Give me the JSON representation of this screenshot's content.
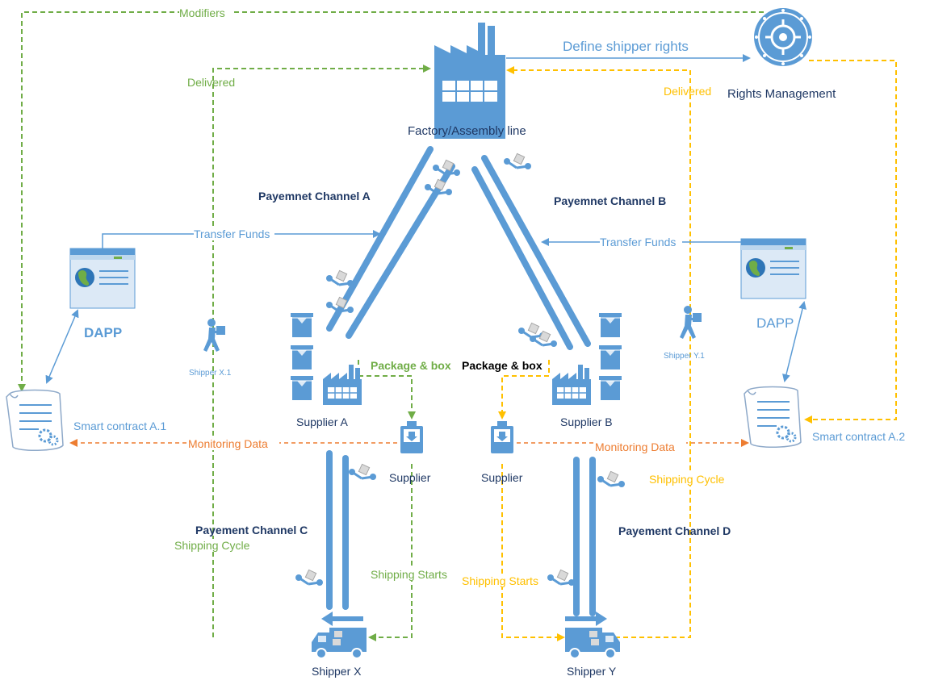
{
  "colors": {
    "blue": "#5b9bd5",
    "dark_blue": "#1f4e79",
    "green": "#70ad47",
    "orange_data": "#ed7d31",
    "gold": "#ffc000",
    "gray_box": "#d9d9d9"
  },
  "labels": {
    "modifiers_left": "Modifiers",
    "modifiers_right": "Modifiers",
    "define_rights": "Define shipper rights",
    "rights_management": "Rights Management",
    "delivered_left": "Delivered",
    "delivered_right": "Delivered",
    "factory": "Factory/Assembly line",
    "channel_a": "Payemnet Channel A",
    "channel_b": "Payemnet Channel B",
    "transfer_funds_left": "Transfer Funds",
    "transfer_funds_right": "Transfer Funds",
    "dapp_left": "DAPP",
    "dapp_right": "DAPP",
    "shipper_x1": "Shipper X.1",
    "shipper_y1": "Shipper Y.1",
    "package_box_left": "Package & box",
    "package_box_right": "Package & box",
    "supplier_a": "Supplier A",
    "supplier_b": "Supplier B",
    "smart_contract_a1": "Smart contract A.1",
    "smart_contract_a2": "Smart contract A.2",
    "monitoring_left": "Monitoring Data",
    "monitoring_right": "Monitoring Data",
    "supplier_left": "Supplier",
    "supplier_right": "Supplier",
    "shipping_cycle_left": "Shipping Cycle",
    "shipping_cycle_right": "Shipping Cycle",
    "channel_c": "Payement Channel C",
    "channel_d": "Payement Channel D",
    "shipping_starts_left": "Shipping Starts",
    "shipping_starts_right": "Shipping Starts",
    "shipper_x": "Shipper X",
    "shipper_y": "Shipper Y"
  },
  "icons": {
    "rights": "vault-icon",
    "factory": "factory-icon",
    "dapp": "browser-globe-icon",
    "contract": "scroll-gear-icon",
    "shipper": "delivery-person-icon",
    "truck": "truck-icon",
    "supplier": "package-icon",
    "boxes": "stacked-boxes-icon",
    "robot": "robot-arm-icon"
  }
}
